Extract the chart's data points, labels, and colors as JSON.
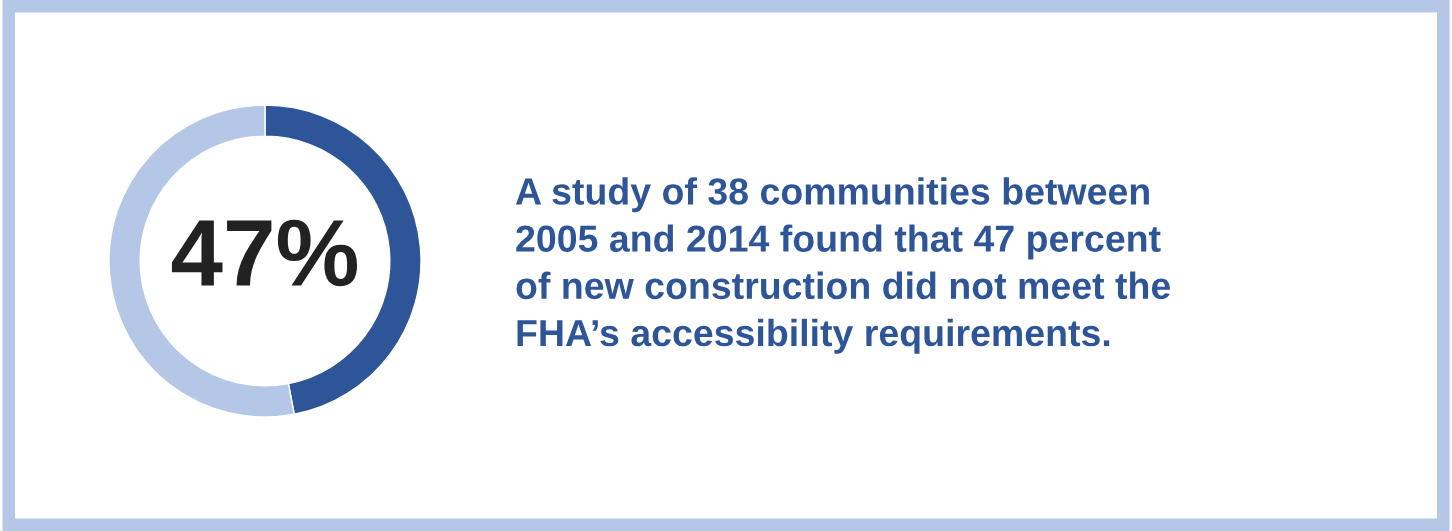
{
  "chart_data": {
    "type": "donut",
    "categories": [
      null,
      null
    ],
    "values": [
      47,
      53
    ],
    "colors": [
      "#2e5597",
      "#b4c7e7"
    ],
    "annotations": [
      "47%",
      "A study of 38 communities between\n2005 and 2014 found that 47 percent\nof new construction did not meet the\nFHA’s accessibility requirements."
    ]
  }
}
